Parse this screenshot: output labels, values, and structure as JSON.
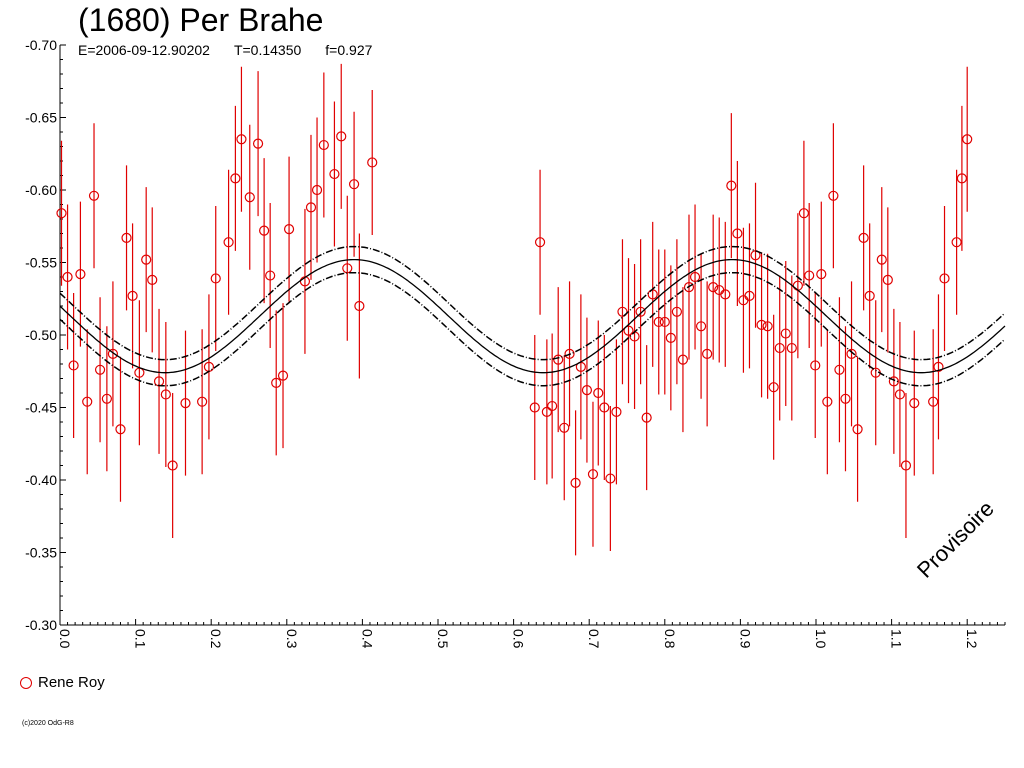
{
  "title": "(1680) Per Brahe",
  "subtitle": {
    "epoch": "E=2006-09-12.90202",
    "period": "T=0.14350",
    "factor": "f=0.927"
  },
  "legend": {
    "observer": "Rene Roy",
    "marker_color": "#e00000"
  },
  "watermark": "Provisoire",
  "copyright": "(c)2020 OdG-R8",
  "colors": {
    "points": "#e00000",
    "curve": "#000000"
  },
  "chart_data": {
    "type": "scatter",
    "title": "(1680) Per Brahe",
    "xlim": [
      0.0,
      1.25
    ],
    "ylim": [
      -0.7,
      -0.3
    ],
    "y_inverted": true,
    "x_ticks": [
      "0.0",
      "0.1",
      "0.2",
      "0.3",
      "0.4",
      "0.5",
      "0.6",
      "0.7",
      "0.8",
      "0.9",
      "1.0",
      "1.1",
      "1.2"
    ],
    "y_ticks": [
      "-0.70",
      "-0.65",
      "-0.60",
      "-0.55",
      "-0.50",
      "-0.45",
      "-0.40",
      "-0.35",
      "-0.30"
    ],
    "grid": false,
    "fit": {
      "mean": -0.513,
      "amplitude": 0.039,
      "phase_of_minimum_magnitude": 0.389,
      "band_offset": 0.009
    },
    "series": [
      {
        "name": "Rene Roy",
        "error": 0.05,
        "points": [
          [
            0.002,
            -0.584
          ],
          [
            0.01,
            -0.54
          ],
          [
            0.018,
            -0.479
          ],
          [
            0.027,
            -0.542
          ],
          [
            0.036,
            -0.454
          ],
          [
            0.045,
            -0.596
          ],
          [
            0.053,
            -0.476
          ],
          [
            0.062,
            -0.456
          ],
          [
            0.07,
            -0.487
          ],
          [
            0.08,
            -0.435
          ],
          [
            0.088,
            -0.567
          ],
          [
            0.096,
            -0.527
          ],
          [
            0.105,
            -0.474
          ],
          [
            0.114,
            -0.552
          ],
          [
            0.122,
            -0.538
          ],
          [
            0.131,
            -0.468
          ],
          [
            0.14,
            -0.459
          ],
          [
            0.149,
            -0.41
          ],
          [
            0.166,
            -0.453
          ],
          [
            0.188,
            -0.454
          ],
          [
            0.197,
            -0.478
          ],
          [
            0.206,
            -0.539
          ],
          [
            0.223,
            -0.564
          ],
          [
            0.232,
            -0.608
          ],
          [
            0.24,
            -0.635
          ],
          [
            0.251,
            -0.595
          ],
          [
            0.262,
            -0.632
          ],
          [
            0.27,
            -0.572
          ],
          [
            0.278,
            -0.541
          ],
          [
            0.286,
            -0.467
          ],
          [
            0.295,
            -0.472
          ],
          [
            0.303,
            -0.573
          ],
          [
            0.324,
            -0.537
          ],
          [
            0.332,
            -0.588
          ],
          [
            0.34,
            -0.6
          ],
          [
            0.349,
            -0.631
          ],
          [
            0.363,
            -0.611
          ],
          [
            0.372,
            -0.637
          ],
          [
            0.38,
            -0.546
          ],
          [
            0.389,
            -0.604
          ],
          [
            0.396,
            -0.52
          ],
          [
            0.413,
            -0.619
          ],
          [
            0.628,
            -0.45
          ],
          [
            0.635,
            -0.564
          ],
          [
            0.644,
            -0.447
          ],
          [
            0.651,
            -0.451
          ],
          [
            0.659,
            -0.483
          ],
          [
            0.667,
            -0.436
          ],
          [
            0.674,
            -0.487
          ],
          [
            0.682,
            -0.398
          ],
          [
            0.689,
            -0.478
          ],
          [
            0.697,
            -0.462
          ],
          [
            0.705,
            -0.404
          ],
          [
            0.712,
            -0.46
          ],
          [
            0.72,
            -0.45
          ],
          [
            0.728,
            -0.401
          ],
          [
            0.736,
            -0.447
          ],
          [
            0.744,
            -0.516
          ],
          [
            0.752,
            -0.503
          ],
          [
            0.76,
            -0.499
          ],
          [
            0.768,
            -0.516
          ],
          [
            0.776,
            -0.443
          ],
          [
            0.784,
            -0.528
          ],
          [
            0.792,
            -0.509
          ],
          [
            0.8,
            -0.509
          ],
          [
            0.808,
            -0.498
          ],
          [
            0.816,
            -0.516
          ],
          [
            0.824,
            -0.483
          ],
          [
            0.832,
            -0.533
          ],
          [
            0.84,
            -0.54
          ],
          [
            0.848,
            -0.506
          ],
          [
            0.856,
            -0.487
          ],
          [
            0.864,
            -0.533
          ],
          [
            0.872,
            -0.531
          ],
          [
            0.88,
            -0.528
          ],
          [
            0.888,
            -0.603
          ],
          [
            0.896,
            -0.57
          ],
          [
            0.904,
            -0.524
          ],
          [
            0.912,
            -0.527
          ],
          [
            0.92,
            -0.555
          ],
          [
            0.928,
            -0.507
          ],
          [
            0.936,
            -0.506
          ],
          [
            0.944,
            -0.464
          ],
          [
            0.952,
            -0.491
          ],
          [
            0.96,
            -0.501
          ],
          [
            0.968,
            -0.491
          ],
          [
            0.976,
            -0.534
          ],
          [
            0.984,
            -0.584
          ],
          [
            0.991,
            -0.541
          ],
          [
            0.999,
            -0.479
          ],
          [
            1.007,
            -0.542
          ],
          [
            1.015,
            -0.454
          ],
          [
            1.023,
            -0.596
          ],
          [
            1.031,
            -0.476
          ],
          [
            1.039,
            -0.456
          ],
          [
            1.047,
            -0.487
          ],
          [
            1.055,
            -0.435
          ],
          [
            1.063,
            -0.567
          ],
          [
            1.071,
            -0.527
          ],
          [
            1.079,
            -0.474
          ],
          [
            1.087,
            -0.552
          ],
          [
            1.095,
            -0.538
          ],
          [
            1.103,
            -0.468
          ],
          [
            1.111,
            -0.459
          ],
          [
            1.119,
            -0.41
          ],
          [
            1.13,
            -0.453
          ],
          [
            1.155,
            -0.454
          ],
          [
            1.162,
            -0.478
          ],
          [
            1.17,
            -0.539
          ],
          [
            1.186,
            -0.564
          ],
          [
            1.193,
            -0.608
          ],
          [
            1.2,
            -0.635
          ]
        ]
      }
    ]
  }
}
